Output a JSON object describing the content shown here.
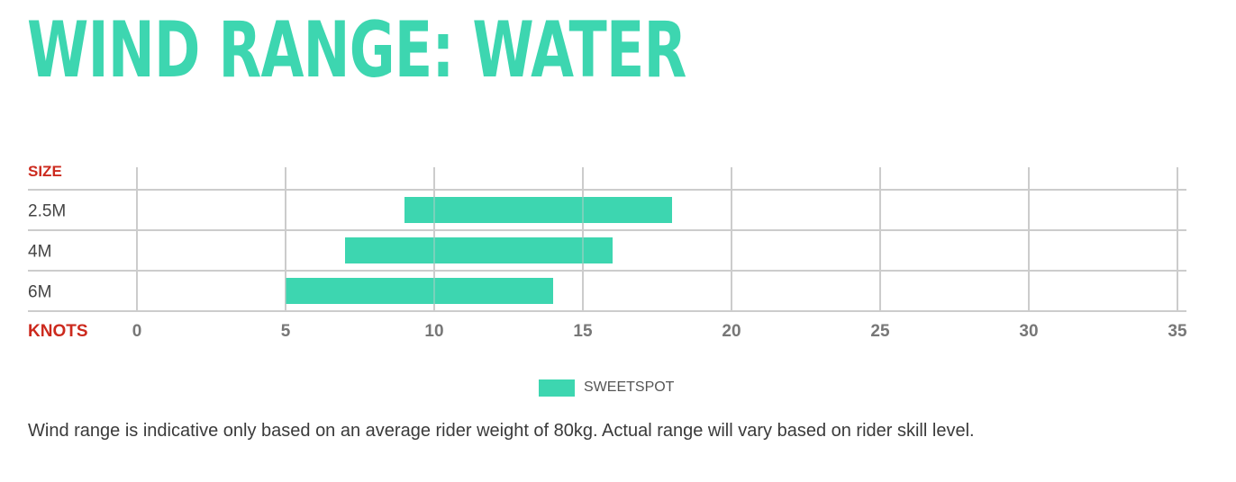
{
  "title": "WIND RANGE: WATER",
  "chart_data": {
    "type": "bar",
    "orientation": "horizontal-range",
    "y_axis_header": "SIZE",
    "x_axis_header": "KNOTS",
    "categories": [
      "2.5M",
      "4M",
      "6M"
    ],
    "series": [
      {
        "name": "SWEETSPOT",
        "ranges": [
          [
            9,
            18
          ],
          [
            7,
            16
          ],
          [
            5,
            14
          ]
        ]
      }
    ],
    "xlim": [
      0,
      35
    ],
    "x_ticks": [
      0,
      5,
      10,
      15,
      20,
      25,
      30,
      35
    ],
    "grid": true,
    "legend_position": "bottom-center"
  },
  "legend": {
    "label": "SWEETSPOT"
  },
  "colors": {
    "bar": "#3dd6b0",
    "title": "#3dd6b0",
    "axis_header": "#cc2a1e",
    "tick_label": "#777777",
    "category_label": "#444444",
    "grid": "#cccccc"
  },
  "note": "Wind range is indicative only based on an average rider weight of 80kg. Actual range will vary based on rider skill level."
}
